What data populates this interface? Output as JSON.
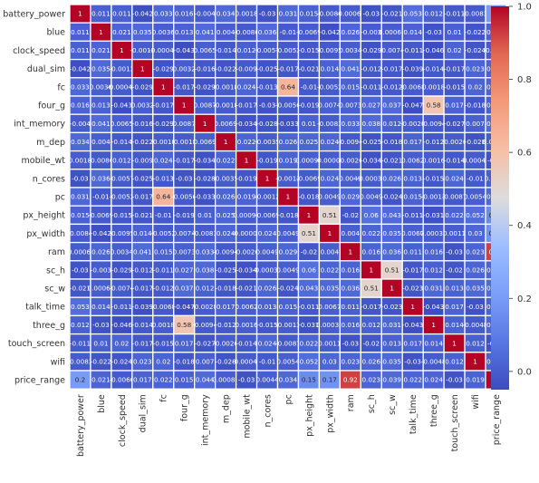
{
  "chart_data": {
    "type": "heatmap",
    "title": "",
    "xlabel": "",
    "ylabel": "",
    "labels": [
      "battery_power",
      "blue",
      "clock_speed",
      "dual_sim",
      "fc",
      "four_g",
      "int_memory",
      "m_dep",
      "mobile_wt",
      "n_cores",
      "pc",
      "px_height",
      "px_width",
      "ram",
      "sc_h",
      "sc_w",
      "talk_time",
      "three_g",
      "touch_screen",
      "wifi",
      "price_range"
    ],
    "matrix": [
      [
        "1",
        "0.011",
        "0.011",
        "-0.042",
        "0.033",
        "0.016",
        "-0.004",
        "0.034",
        "0.0018",
        "-0.03",
        "0.031",
        "0.015",
        "-0.0084",
        "-0.00065",
        "-0.03",
        "-0.021",
        "0.053",
        "0.012",
        "-0.011",
        "-0.0083",
        "0.2"
      ],
      [
        "0.011",
        "1",
        "0.021",
        "0.035",
        "0.0036",
        "0.013",
        "0.041",
        "0.004",
        "-0.0086",
        "0.036",
        "-0.01",
        "-0.0069",
        "-0.042",
        "0.026",
        "-0.003",
        "0.00061",
        "0.014",
        "-0.03",
        "0.01",
        "-0.022",
        "0.021"
      ],
      [
        "0.011",
        "0.021",
        "1",
        "-0.0013",
        "-0.00043",
        "-0.043",
        "0.0065",
        "-0.014",
        "0.012",
        "-0.0057",
        "-0.0052",
        "-0.015",
        "-0.0095",
        "0.0034",
        "-0.029",
        "-0.0074",
        "-0.011",
        "-0.046",
        "0.02",
        "-0.024",
        "-0.0066"
      ],
      [
        "-0.042",
        "0.035",
        "-0.0013",
        "1",
        "-0.029",
        "0.0032",
        "-0.016",
        "-0.022",
        "-0.009",
        "-0.025",
        "-0.017",
        "-0.021",
        "0.014",
        "0.041",
        "-0.012",
        "-0.017",
        "-0.039",
        "-0.014",
        "-0.017",
        "0.023",
        "0.017"
      ],
      [
        "0.033",
        "0.0036",
        "-0.00043",
        "-0.029",
        "1",
        "-0.017",
        "-0.029",
        "-0.0018",
        "0.024",
        "-0.013",
        "0.64",
        "-0.01",
        "-0.0052",
        "0.015",
        "-0.011",
        "-0.012",
        "-0.0068",
        "0.0018",
        "-0.015",
        "0.02",
        "0.022"
      ],
      [
        "0.016",
        "0.013",
        "-0.043",
        "0.0032",
        "-0.017",
        "1",
        "0.0087",
        "-0.0018",
        "-0.017",
        "-0.03",
        "-0.0056",
        "-0.019",
        "0.0074",
        "0.0073",
        "0.027",
        "0.037",
        "-0.047",
        "0.58",
        "0.017",
        "-0.018",
        "0.015"
      ],
      [
        "-0.004",
        "0.041",
        "0.0065",
        "-0.016",
        "-0.029",
        "0.0087",
        "1",
        "0.0069",
        "-0.034",
        "-0.028",
        "-0.033",
        "0.01",
        "-0.0083",
        "0.033",
        "0.038",
        "0.012",
        "-0.0028",
        "-0.0094",
        "-0.027",
        "0.007",
        "0.044"
      ],
      [
        "0.034",
        "0.004",
        "-0.014",
        "-0.022",
        "-0.0018",
        "-0.0018",
        "0.0069",
        "1",
        "0.022",
        "-0.0035",
        "0.026",
        "0.025",
        "0.024",
        "-0.0094",
        "-0.025",
        "-0.018",
        "0.017",
        "-0.012",
        "-0.0026",
        "-0.028",
        "0.00085"
      ],
      [
        "0.0018",
        "-0.0086",
        "0.012",
        "-0.009",
        "0.024",
        "-0.017",
        "-0.034",
        "0.022",
        "1",
        "-0.019",
        "0.019",
        "0.00094",
        "-0.00005",
        "-0.0026",
        "-0.034",
        "-0.021",
        "0.0062",
        "0.0016",
        "-0.014",
        "-0.00041",
        "-0.03"
      ],
      [
        "-0.03",
        "0.036",
        "-0.0057",
        "-0.025",
        "-0.013",
        "-0.03",
        "-0.028",
        "-0.0035",
        "-0.019",
        "1",
        "-0.0012",
        "-0.0069",
        "0.024",
        "0.0049",
        "-0.00031",
        "0.026",
        "0.013",
        "-0.015",
        "0.024",
        "-0.01",
        "0.0044"
      ],
      [
        "0.031",
        "-0.01",
        "-0.0052",
        "-0.017",
        "0.64",
        "-0.0056",
        "-0.033",
        "0.026",
        "0.019",
        "-0.0012",
        "1",
        "-0.018",
        "0.0049",
        "0.029",
        "0.0049",
        "-0.024",
        "0.015",
        "-0.0013",
        "-0.0087",
        "0.0054",
        "0.034"
      ],
      [
        "0.015",
        "-0.0069",
        "-0.015",
        "-0.021",
        "-0.01",
        "-0.019",
        "0.01",
        "0.025",
        "0.00094",
        "-0.0069",
        "-0.018",
        "1",
        "0.51",
        "-0.02",
        "0.06",
        "0.043",
        "-0.011",
        "-0.031",
        "0.022",
        "0.052",
        "0.15"
      ],
      [
        "-0.0084",
        "-0.042",
        "-0.0095",
        "0.014",
        "-0.0052",
        "0.0074",
        "-0.0083",
        "0.024",
        "-0.00005",
        "0.024",
        "0.0049",
        "0.51",
        "1",
        "0.004",
        "0.022",
        "0.035",
        "0.0067",
        "0.00035",
        "0.0011",
        "0.03",
        "0.17"
      ],
      [
        "-0.00065",
        "0.026",
        "0.0034",
        "0.041",
        "0.015",
        "0.0073",
        "0.033",
        "-0.0094",
        "-0.0026",
        "0.0049",
        "0.029",
        "-0.02",
        "0.004",
        "1",
        "0.016",
        "0.036",
        "0.011",
        "0.016",
        "-0.03",
        "0.023",
        "0.92"
      ],
      [
        "-0.03",
        "-0.003",
        "-0.029",
        "-0.012",
        "-0.011",
        "0.027",
        "0.038",
        "-0.025",
        "-0.034",
        "-0.00031",
        "0.0049",
        "0.06",
        "0.022",
        "0.016",
        "1",
        "0.51",
        "-0.017",
        "0.012",
        "-0.02",
        "0.026",
        "0.023"
      ],
      [
        "-0.021",
        "0.00061",
        "-0.0074",
        "-0.017",
        "-0.012",
        "0.037",
        "0.012",
        "-0.018",
        "-0.021",
        "0.026",
        "-0.024",
        "0.043",
        "0.035",
        "0.036",
        "0.51",
        "1",
        "-0.023",
        "0.031",
        "0.013",
        "0.035",
        "0.039"
      ],
      [
        "0.053",
        "0.014",
        "-0.011",
        "-0.039",
        "-0.0068",
        "-0.047",
        "-0.0028",
        "0.017",
        "0.0062",
        "0.013",
        "0.015",
        "-0.011",
        "0.0067",
        "0.011",
        "-0.017",
        "-0.023",
        "1",
        "-0.043",
        "0.017",
        "-0.03",
        "0.022"
      ],
      [
        "0.012",
        "-0.03",
        "-0.046",
        "-0.014",
        "0.0018",
        "0.58",
        "-0.0094",
        "-0.012",
        "0.0016",
        "-0.015",
        "-0.0013",
        "-0.031",
        "0.00035",
        "0.016",
        "0.012",
        "0.031",
        "-0.043",
        "1",
        "0.014",
        "-0.0048",
        "0.024"
      ],
      [
        "-0.011",
        "0.01",
        "0.02",
        "-0.017",
        "-0.015",
        "0.017",
        "-0.027",
        "-0.0026",
        "-0.014",
        "0.024",
        "-0.0087",
        "0.022",
        "0.0011",
        "-0.03",
        "-0.02",
        "0.013",
        "0.017",
        "0.014",
        "1",
        "0.012",
        "-0.03"
      ],
      [
        "-0.0083",
        "-0.022",
        "-0.024",
        "0.023",
        "0.02",
        "-0.018",
        "0.007",
        "-0.028",
        "-0.00041",
        "-0.01",
        "0.0054",
        "0.052",
        "0.03",
        "0.023",
        "0.026",
        "0.035",
        "-0.03",
        "-0.0048",
        "0.012",
        "1",
        "0.019"
      ],
      [
        "0.2",
        "0.021",
        "-0.0066",
        "0.017",
        "0.022",
        "0.015",
        "0.044",
        "0.00085",
        "-0.03",
        "0.0044",
        "0.034",
        "0.15",
        "0.17",
        "0.92",
        "0.023",
        "0.039",
        "0.022",
        "0.024",
        "-0.03",
        "0.019",
        "1"
      ]
    ],
    "vmin": -0.05,
    "vmax": 1.0,
    "colormap": "coolwarm",
    "colorbar_ticks": [
      "0.0",
      "0.2",
      "0.4",
      "0.6",
      "0.8",
      "1.0"
    ],
    "grid": false,
    "legend": "colorbar-right"
  }
}
